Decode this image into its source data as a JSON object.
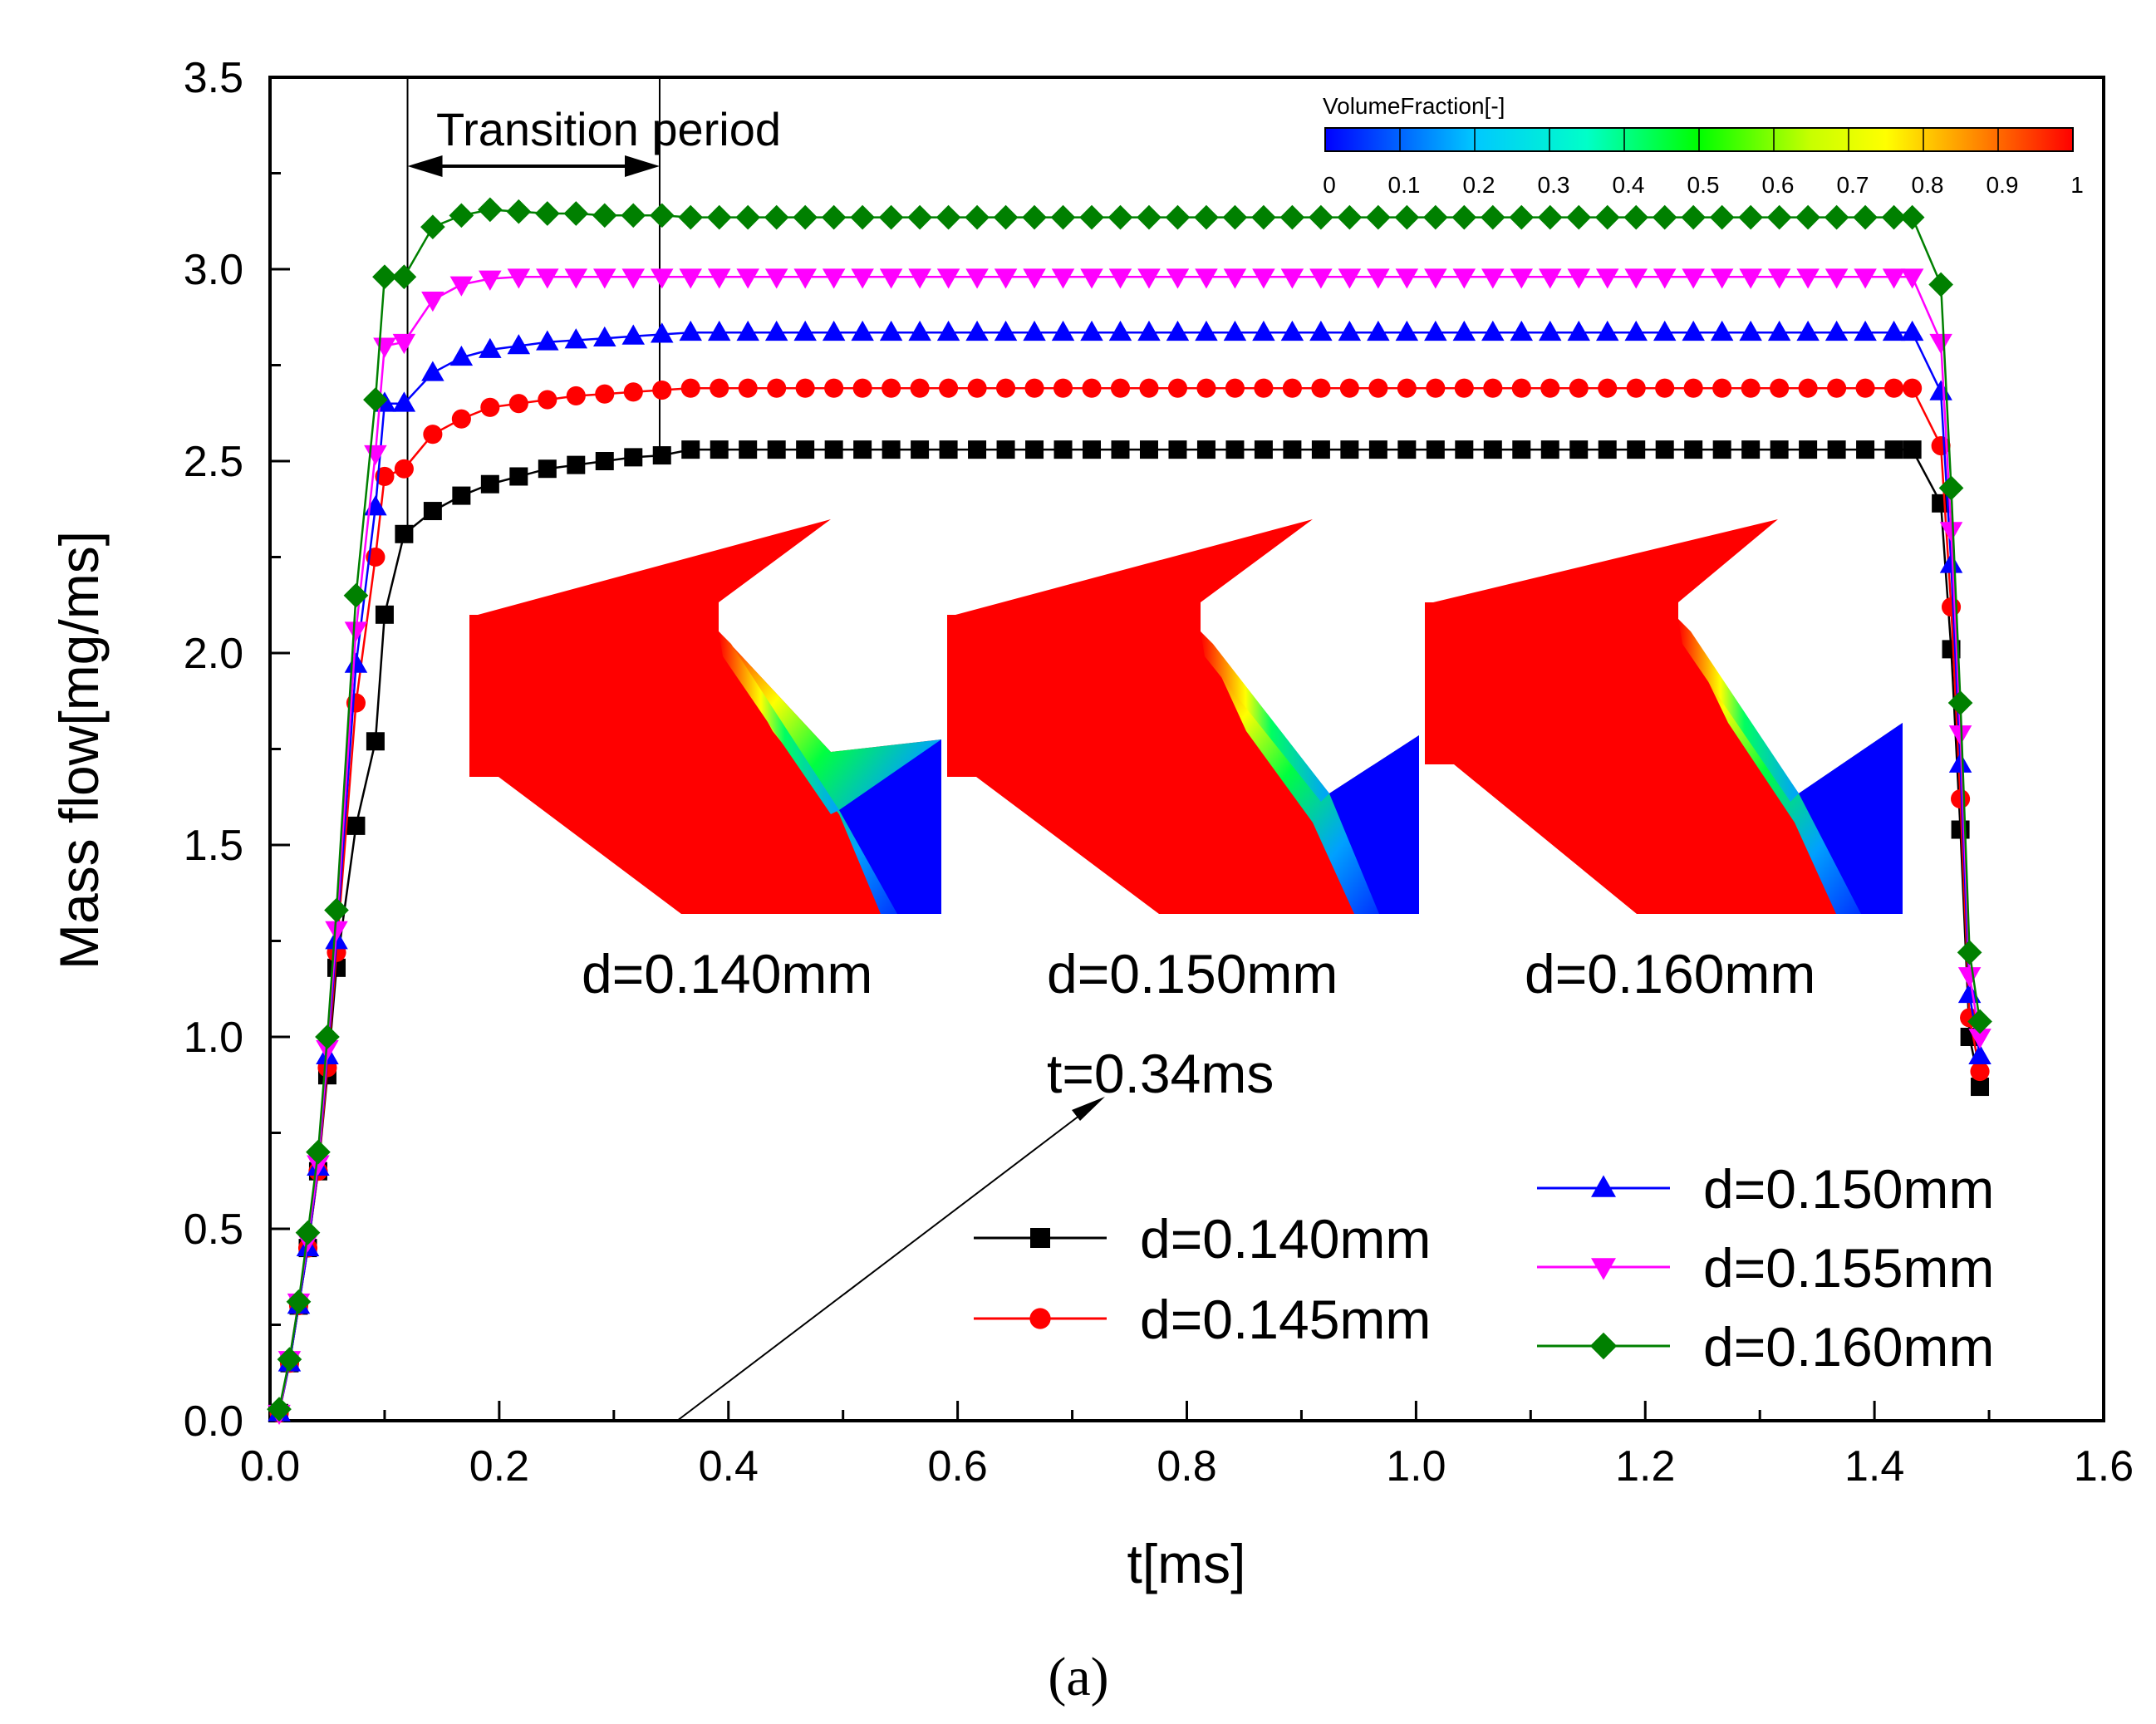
{
  "chart_data": {
    "type": "line",
    "title": "",
    "xlabel": "t[ms]",
    "ylabel": "Mass flow[mg/ms]",
    "xlim": [
      0.0,
      1.6
    ],
    "ylim": [
      0.0,
      3.5
    ],
    "xticks": [
      "0.0",
      "0.2",
      "0.4",
      "0.6",
      "0.8",
      "1.0",
      "1.2",
      "1.4",
      "1.6"
    ],
    "yticks": [
      "0.0",
      "0.5",
      "1.0",
      "1.5",
      "2.0",
      "2.5",
      "3.0",
      "3.5"
    ],
    "grid": false,
    "legend_position": "bottom-right",
    "caption": "(a)",
    "series": [
      {
        "name": "d=0.140mm",
        "color": "#000000",
        "marker": "square",
        "steady": 2.53,
        "rise": [
          [
            0.008,
            0.02
          ],
          [
            0.017,
            0.15
          ],
          [
            0.025,
            0.3
          ],
          [
            0.033,
            0.45
          ],
          [
            0.042,
            0.65
          ],
          [
            0.05,
            0.9
          ],
          [
            0.058,
            1.18
          ],
          [
            0.075,
            1.55
          ],
          [
            0.092,
            1.77
          ],
          [
            0.1,
            2.1
          ],
          [
            0.117,
            2.31
          ],
          [
            0.142,
            2.37
          ],
          [
            0.167,
            2.41
          ],
          [
            0.192,
            2.44
          ],
          [
            0.217,
            2.46
          ],
          [
            0.242,
            2.48
          ],
          [
            0.267,
            2.49
          ],
          [
            0.292,
            2.5
          ],
          [
            0.317,
            2.51
          ],
          [
            0.342,
            2.515
          ]
        ],
        "fall": [
          [
            1.433,
            2.53
          ],
          [
            1.458,
            2.39
          ],
          [
            1.467,
            2.01
          ],
          [
            1.475,
            1.54
          ],
          [
            1.483,
            1.0
          ],
          [
            1.492,
            0.87
          ]
        ]
      },
      {
        "name": "d=0.145mm",
        "color": "#ff0000",
        "marker": "circle",
        "steady": 2.69,
        "rise": [
          [
            0.008,
            0.02
          ],
          [
            0.017,
            0.15
          ],
          [
            0.025,
            0.3
          ],
          [
            0.033,
            0.45
          ],
          [
            0.042,
            0.65
          ],
          [
            0.05,
            0.92
          ],
          [
            0.058,
            1.22
          ],
          [
            0.075,
            1.87
          ],
          [
            0.092,
            2.25
          ],
          [
            0.1,
            2.46
          ],
          [
            0.117,
            2.48
          ],
          [
            0.142,
            2.57
          ],
          [
            0.167,
            2.61
          ],
          [
            0.192,
            2.64
          ],
          [
            0.217,
            2.65
          ],
          [
            0.242,
            2.66
          ],
          [
            0.267,
            2.67
          ],
          [
            0.292,
            2.675
          ],
          [
            0.317,
            2.68
          ],
          [
            0.342,
            2.685
          ]
        ],
        "fall": [
          [
            1.433,
            2.69
          ],
          [
            1.458,
            2.54
          ],
          [
            1.467,
            2.12
          ],
          [
            1.475,
            1.62
          ],
          [
            1.483,
            1.05
          ],
          [
            1.492,
            0.91
          ]
        ]
      },
      {
        "name": "d=0.150mm",
        "color": "#0000ff",
        "marker": "triangle-up",
        "steady": 2.835,
        "rise": [
          [
            0.008,
            0.02
          ],
          [
            0.017,
            0.15
          ],
          [
            0.025,
            0.3
          ],
          [
            0.033,
            0.45
          ],
          [
            0.042,
            0.66
          ],
          [
            0.05,
            0.95
          ],
          [
            0.058,
            1.25
          ],
          [
            0.075,
            1.97
          ],
          [
            0.092,
            2.38
          ],
          [
            0.1,
            2.65
          ],
          [
            0.117,
            2.65
          ],
          [
            0.142,
            2.73
          ],
          [
            0.167,
            2.77
          ],
          [
            0.192,
            2.79
          ],
          [
            0.217,
            2.8
          ],
          [
            0.242,
            2.81
          ],
          [
            0.267,
            2.815
          ],
          [
            0.292,
            2.82
          ],
          [
            0.317,
            2.825
          ],
          [
            0.342,
            2.83
          ]
        ],
        "fall": [
          [
            1.433,
            2.835
          ],
          [
            1.458,
            2.68
          ],
          [
            1.467,
            2.23
          ],
          [
            1.475,
            1.71
          ],
          [
            1.483,
            1.11
          ],
          [
            1.492,
            0.95
          ]
        ]
      },
      {
        "name": "d=0.155mm",
        "color": "#ff00ff",
        "marker": "triangle-down",
        "steady": 2.98,
        "rise": [
          [
            0.008,
            0.02
          ],
          [
            0.017,
            0.16
          ],
          [
            0.025,
            0.31
          ],
          [
            0.033,
            0.47
          ],
          [
            0.042,
            0.67
          ],
          [
            0.05,
            0.97
          ],
          [
            0.058,
            1.28
          ],
          [
            0.075,
            2.06
          ],
          [
            0.092,
            2.52
          ],
          [
            0.1,
            2.8
          ],
          [
            0.117,
            2.81
          ],
          [
            0.142,
            2.92
          ],
          [
            0.167,
            2.96
          ],
          [
            0.192,
            2.975
          ],
          [
            0.217,
            2.98
          ],
          [
            0.242,
            2.98
          ],
          [
            0.267,
            2.98
          ],
          [
            0.292,
            2.98
          ],
          [
            0.317,
            2.98
          ],
          [
            0.342,
            2.98
          ]
        ],
        "fall": [
          [
            1.433,
            2.98
          ],
          [
            1.458,
            2.81
          ],
          [
            1.467,
            2.32
          ],
          [
            1.475,
            1.79
          ],
          [
            1.483,
            1.16
          ],
          [
            1.492,
            1.0
          ]
        ]
      },
      {
        "name": "d=0.160mm",
        "color": "#008000",
        "marker": "diamond",
        "steady": 3.135,
        "rise": [
          [
            0.008,
            0.03
          ],
          [
            0.017,
            0.16
          ],
          [
            0.025,
            0.31
          ],
          [
            0.033,
            0.49
          ],
          [
            0.042,
            0.7
          ],
          [
            0.05,
            1.0
          ],
          [
            0.058,
            1.33
          ],
          [
            0.075,
            2.15
          ],
          [
            0.092,
            2.66
          ],
          [
            0.1,
            2.98
          ],
          [
            0.117,
            2.98
          ],
          [
            0.142,
            3.11
          ],
          [
            0.167,
            3.14
          ],
          [
            0.192,
            3.155
          ],
          [
            0.217,
            3.15
          ],
          [
            0.242,
            3.145
          ],
          [
            0.267,
            3.145
          ],
          [
            0.292,
            3.14
          ],
          [
            0.317,
            3.14
          ],
          [
            0.342,
            3.14
          ]
        ],
        "fall": [
          [
            1.433,
            3.135
          ],
          [
            1.458,
            2.96
          ],
          [
            1.467,
            2.43
          ],
          [
            1.475,
            1.87
          ],
          [
            1.483,
            1.22
          ],
          [
            1.492,
            1.04
          ]
        ]
      }
    ],
    "annotations": {
      "transition": {
        "label": "Transition period",
        "x_start": 0.12,
        "x_end": 0.34
      },
      "time_label": "t=0.34ms",
      "inset_labels": [
        "d=0.140mm",
        "d=0.150mm",
        "d=0.160mm"
      ],
      "colorbar": {
        "title": "VolumeFraction[-]",
        "ticks": [
          "0",
          "0.1",
          "0.2",
          "0.3",
          "0.4",
          "0.5",
          "0.6",
          "0.7",
          "0.8",
          "0.9",
          "1"
        ],
        "colors": [
          "#0000ff",
          "#00bfff",
          "#00ffff",
          "#00ff80",
          "#00ff00",
          "#80ff00",
          "#ffff00",
          "#ff8000",
          "#ff0000"
        ]
      }
    }
  }
}
